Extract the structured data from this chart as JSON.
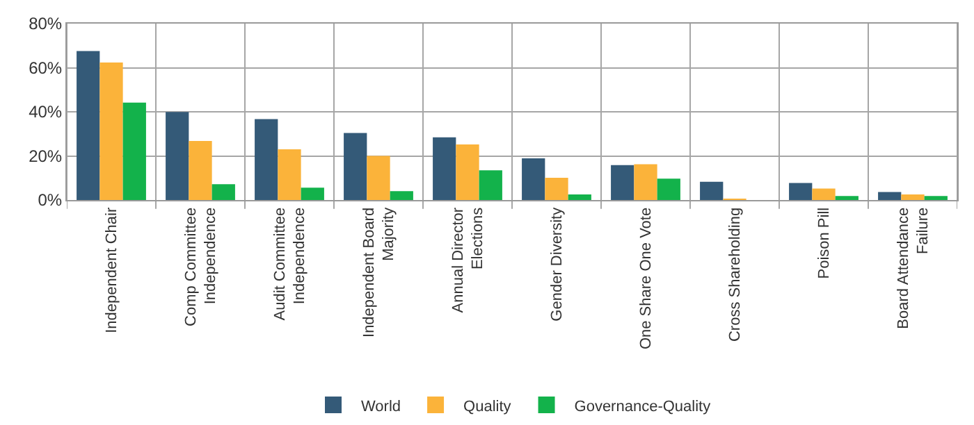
{
  "chart_data": {
    "type": "bar",
    "categories": [
      "Independent Chair",
      "Comp Committee\nIndependence",
      "Audit Committee\nIndependence",
      "Independent Board\nMajority",
      "Annual Director\nElections",
      "Gender Diversity",
      "One Share One Vote",
      "Cross Shareholding",
      "Poison Pill",
      "Board Attendance\nFailure"
    ],
    "series": [
      {
        "name": "World",
        "color": "#345a78",
        "values": [
          67.6,
          39.9,
          36.7,
          30.4,
          28.4,
          18.9,
          15.8,
          8.3,
          7.7,
          3.6
        ]
      },
      {
        "name": "Quality",
        "color": "#fbb33a",
        "values": [
          62.4,
          26.8,
          23.0,
          20.0,
          25.2,
          10.1,
          16.2,
          0.3,
          5.2,
          2.5
        ]
      },
      {
        "name": "Governance-Quality",
        "color": "#13b24b",
        "values": [
          44.2,
          7.2,
          5.6,
          4.0,
          13.5,
          2.5,
          9.7,
          null,
          1.8,
          1.8
        ]
      }
    ],
    "ylim": [
      0,
      80
    ],
    "yticks": [
      {
        "value": 0,
        "label": "0%"
      },
      {
        "value": 20,
        "label": "20%"
      },
      {
        "value": 40,
        "label": "40%"
      },
      {
        "value": 60,
        "label": "60%"
      },
      {
        "value": 80,
        "label": "80%"
      }
    ],
    "grid": true,
    "legend": "bottom"
  }
}
